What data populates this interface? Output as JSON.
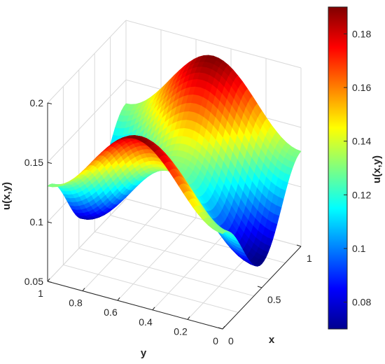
{
  "chart_data": {
    "type": "surface",
    "title": "",
    "xlabel": "x",
    "ylabel": "y",
    "zlabel": "u(x,y)",
    "x_range": [
      0,
      1
    ],
    "y_range": [
      0,
      1
    ],
    "zlim": [
      0.05,
      0.2
    ],
    "x_ticks": [
      "0",
      "0.5",
      "1"
    ],
    "y_ticks": [
      "1",
      "0.8",
      "0.6",
      "0.4",
      "0.2",
      "0"
    ],
    "z_ticks": [
      "0.05",
      "0.1",
      "0.15",
      "0.2"
    ],
    "surface": {
      "function": "0.13 + 0.03*cos(2*pi*x) - 0.03*cos(2*pi*y)",
      "min": 0.07,
      "max": 0.19,
      "samples": [
        {
          "x": 0,
          "y": 0,
          "u": 0.13
        },
        {
          "x": 0.5,
          "y": 0,
          "u": 0.07
        },
        {
          "x": 1,
          "y": 0,
          "u": 0.13
        },
        {
          "x": 0,
          "y": 0.5,
          "u": 0.19
        },
        {
          "x": 0.5,
          "y": 0.5,
          "u": 0.13
        },
        {
          "x": 1,
          "y": 0.5,
          "u": 0.19
        },
        {
          "x": 0,
          "y": 1,
          "u": 0.13
        },
        {
          "x": 0.5,
          "y": 1,
          "u": 0.07
        },
        {
          "x": 1,
          "y": 1,
          "u": 0.13
        }
      ]
    },
    "colormap": "jet",
    "grid": true,
    "colorbar": {
      "label": "u(x,y)",
      "ticks": [
        "0.08",
        "0.1",
        "0.12",
        "0.14",
        "0.16",
        "0.18"
      ],
      "tick_values": [
        0.08,
        0.1,
        0.12,
        0.14,
        0.16,
        0.18
      ],
      "range": [
        0.07,
        0.19
      ]
    }
  }
}
